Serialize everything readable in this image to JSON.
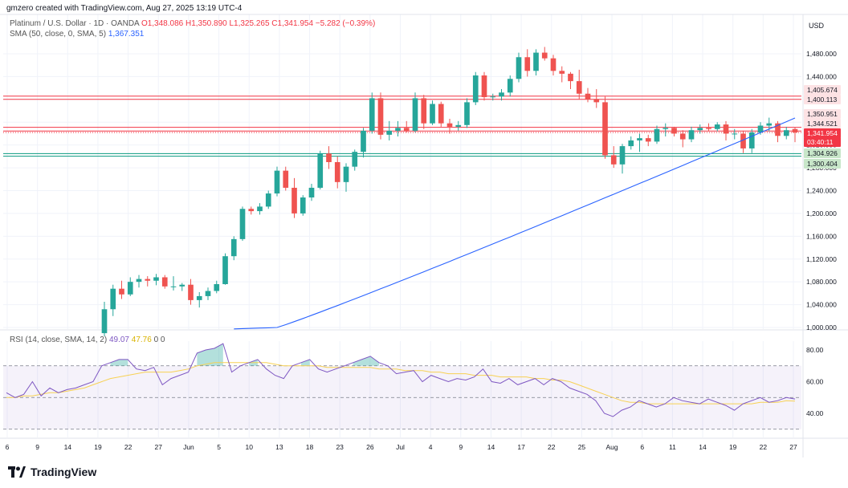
{
  "header": {
    "credit": "gmzero created with TradingView.com, Aug 27, 2025 13:19 UTC-4",
    "symbol_line": {
      "name": "Platinum / U.S. Dollar · 1D · OANDA",
      "ohlc": "O1,348.086 H1,350.890 L1,325.265 C1,341.954 −5.282 (−0.39%)"
    },
    "sma_line": {
      "label": "SMA (50, close, 0, SMA, 5)",
      "value": "1,367.351"
    },
    "rsi_line": {
      "label": "RSI (14, close, SMA, 14, 2)",
      "rsi_value": "49.07",
      "ma_value": "47.76",
      "extra": "0 0"
    }
  },
  "price_axis": {
    "currency": "USD",
    "ticks": [
      "1,480.000",
      "1,440.000",
      "1,400.000",
      "1,360.000",
      "1,320.000",
      "1,280.000",
      "1,240.000",
      "1,200.000",
      "1,160.000",
      "1,120.000",
      "1,080.000",
      "1,040.000",
      "1,000.000"
    ]
  },
  "rsi_axis": {
    "ticks": [
      "80.00",
      "60.00",
      "40.00"
    ]
  },
  "time_axis": {
    "labels": [
      "6",
      "9",
      "14",
      "19",
      "22",
      "27",
      "Jun",
      "5",
      "10",
      "13",
      "18",
      "23",
      "26",
      "Jul",
      "4",
      "9",
      "14",
      "17",
      "22",
      "25",
      "Aug",
      "6",
      "11",
      "14",
      "19",
      "22",
      "27"
    ]
  },
  "price_tags": [
    {
      "value": "1,405.674",
      "bg": "#f23645"
    },
    {
      "value": "1,400.113",
      "bg": "#f23645"
    },
    {
      "value": "1,350.951",
      "bg": "#f23645"
    },
    {
      "value": "1,344.521",
      "bg": "#f23645"
    },
    {
      "value": "1,341.954",
      "bg": "#f23645"
    },
    {
      "value": "03:40:11",
      "bg": "#f23645"
    },
    {
      "value": "1,304.926",
      "bg": "#089981"
    },
    {
      "value": "1,300.404",
      "bg": "#089981"
    }
  ],
  "colors": {
    "up": "#26a69a",
    "down": "#ef5350",
    "sma": "#2962ff",
    "rsi": "#7e57c2",
    "rsi_ma": "#f7d154",
    "res": "#f23645",
    "sup": "#089981"
  },
  "brand": {
    "name": "TradingView"
  },
  "chart_data": [
    {
      "type": "candlestick",
      "title": "Platinum / U.S. Dollar · 1D · OANDA",
      "y_unit": "USD",
      "ylim": [
        990,
        1500
      ],
      "candles": [
        [
          990,
          1045,
          985,
          1032
        ],
        [
          1032,
          1075,
          1020,
          1068
        ],
        [
          1068,
          1082,
          1050,
          1058
        ],
        [
          1058,
          1088,
          1055,
          1080
        ],
        [
          1080,
          1092,
          1070,
          1085
        ],
        [
          1085,
          1090,
          1072,
          1082
        ],
        [
          1082,
          1094,
          1074,
          1088
        ],
        [
          1088,
          1092,
          1068,
          1072
        ],
        [
          1072,
          1090,
          1065,
          1072
        ],
        [
          1072,
          1078,
          1064,
          1075
        ],
        [
          1075,
          1085,
          1040,
          1048
        ],
        [
          1048,
          1062,
          1035,
          1055
        ],
        [
          1055,
          1070,
          1048,
          1064
        ],
        [
          1064,
          1082,
          1060,
          1076
        ],
        [
          1076,
          1130,
          1075,
          1125
        ],
        [
          1125,
          1160,
          1118,
          1155
        ],
        [
          1155,
          1212,
          1152,
          1208
        ],
        [
          1208,
          1212,
          1198,
          1204
        ],
        [
          1204,
          1218,
          1198,
          1212
        ],
        [
          1212,
          1240,
          1208,
          1235
        ],
        [
          1235,
          1282,
          1230,
          1275
        ],
        [
          1275,
          1282,
          1240,
          1245
        ],
        [
          1245,
          1262,
          1192,
          1200
        ],
        [
          1200,
          1232,
          1196,
          1228
        ],
        [
          1228,
          1252,
          1222,
          1245
        ],
        [
          1245,
          1310,
          1242,
          1305
        ],
        [
          1305,
          1318,
          1278,
          1290
        ],
        [
          1290,
          1300,
          1244,
          1255
        ],
        [
          1255,
          1288,
          1238,
          1282
        ],
        [
          1282,
          1312,
          1275,
          1308
        ],
        [
          1308,
          1350,
          1298,
          1345
        ],
        [
          1345,
          1412,
          1340,
          1402
        ],
        [
          1402,
          1412,
          1330,
          1338
        ],
        [
          1338,
          1362,
          1328,
          1345
        ],
        [
          1345,
          1362,
          1335,
          1350
        ],
        [
          1350,
          1362,
          1342,
          1345
        ],
        [
          1345,
          1412,
          1342,
          1402
        ],
        [
          1402,
          1408,
          1348,
          1358
        ],
        [
          1358,
          1398,
          1355,
          1392
        ],
        [
          1392,
          1396,
          1352,
          1358
        ],
        [
          1358,
          1366,
          1340,
          1352
        ],
        [
          1352,
          1362,
          1345,
          1355
        ],
        [
          1355,
          1402,
          1350,
          1395
        ],
        [
          1395,
          1448,
          1390,
          1442
        ],
        [
          1442,
          1448,
          1398,
          1404
        ],
        [
          1404,
          1410,
          1398,
          1405
        ],
        [
          1405,
          1418,
          1398,
          1412
        ],
        [
          1412,
          1442,
          1405,
          1436
        ],
        [
          1436,
          1482,
          1430,
          1474
        ],
        [
          1474,
          1488,
          1440,
          1450
        ],
        [
          1450,
          1488,
          1442,
          1482
        ],
        [
          1482,
          1492,
          1468,
          1472
        ],
        [
          1472,
          1478,
          1442,
          1450
        ],
        [
          1450,
          1458,
          1430,
          1445
        ],
        [
          1445,
          1448,
          1418,
          1432
        ],
        [
          1432,
          1452,
          1400,
          1410
        ],
        [
          1410,
          1420,
          1395,
          1400
        ],
        [
          1400,
          1418,
          1385,
          1395
        ],
        [
          1395,
          1405,
          1296,
          1302
        ],
        [
          1302,
          1318,
          1280,
          1286
        ],
        [
          1286,
          1322,
          1270,
          1318
        ],
        [
          1318,
          1335,
          1312,
          1328
        ],
        [
          1328,
          1340,
          1308,
          1332
        ],
        [
          1332,
          1338,
          1318,
          1326
        ],
        [
          1326,
          1354,
          1322,
          1348
        ],
        [
          1348,
          1358,
          1335,
          1350
        ],
        [
          1350,
          1352,
          1335,
          1340
        ],
        [
          1340,
          1346,
          1316,
          1330
        ],
        [
          1330,
          1352,
          1325,
          1346
        ],
        [
          1346,
          1356,
          1340,
          1350
        ],
        [
          1350,
          1358,
          1344,
          1348
        ],
        [
          1348,
          1360,
          1344,
          1356
        ],
        [
          1356,
          1362,
          1328,
          1340
        ],
        [
          1340,
          1348,
          1330,
          1340
        ],
        [
          1340,
          1345,
          1306,
          1314
        ],
        [
          1314,
          1348,
          1306,
          1342
        ],
        [
          1342,
          1360,
          1338,
          1354
        ],
        [
          1354,
          1368,
          1344,
          1358
        ],
        [
          1358,
          1362,
          1325,
          1336
        ],
        [
          1336,
          1352,
          1330,
          1346
        ],
        [
          1348,
          1351,
          1325,
          1342
        ]
      ],
      "sma": [
        [
          9,
          991
        ],
        [
          18,
          1002
        ],
        [
          27,
          1018
        ],
        [
          36,
          1037
        ],
        [
          45,
          1062
        ],
        [
          50,
          1080
        ],
        [
          55,
          1102
        ],
        [
          60,
          1124
        ],
        [
          65,
          1152
        ],
        [
          70,
          1182
        ],
        [
          74,
          1208
        ],
        [
          77,
          1226
        ],
        [
          80,
          1248
        ],
        [
          80.3,
          1268
        ],
        [
          80.6,
          1290
        ],
        [
          81.0,
          1312
        ],
        [
          81.5,
          1333
        ],
        [
          82.0,
          1350
        ],
        [
          82.5,
          1360
        ],
        [
          83.0,
          1367.351
        ]
      ],
      "sma_points": [
        [
          14,
          1002
        ],
        [
          22,
          1015
        ],
        [
          30,
          1032
        ],
        [
          38,
          1054
        ],
        [
          46,
          1080
        ],
        [
          54,
          1110
        ],
        [
          60,
          1138
        ],
        [
          66,
          1168
        ],
        [
          71,
          1198
        ],
        [
          75,
          1222
        ],
        [
          78,
          1245
        ],
        [
          80,
          1268
        ],
        [
          80,
          1290
        ],
        [
          80,
          1310
        ],
        [
          80,
          1328
        ],
        [
          80,
          1340
        ],
        [
          80,
          1350
        ],
        [
          80,
          1358
        ],
        [
          80,
          1364
        ],
        [
          80,
          1367.351
        ]
      ],
      "levels": {
        "resistance": [
          1405.674,
          1400.113,
          1350.951,
          1344.521
        ],
        "support": [
          1304.926,
          1300.404
        ],
        "last": 1341.954
      }
    },
    {
      "type": "line",
      "title": "RSI (14, close, SMA, 14, 2)",
      "ylim": [
        22,
        90
      ],
      "bands": [
        30,
        50,
        70
      ],
      "rsi": [
        53,
        50,
        52,
        60,
        51,
        56,
        53,
        55,
        56,
        58,
        60,
        70,
        72,
        74,
        74,
        68,
        67,
        69,
        58,
        62,
        64,
        66,
        78,
        80,
        81,
        84,
        66,
        70,
        72,
        74,
        68,
        64,
        62,
        70,
        72,
        74,
        68,
        66,
        68,
        70,
        72,
        74,
        76,
        72,
        70,
        65,
        66,
        67,
        60,
        64,
        62,
        60,
        62,
        61,
        63,
        68,
        60,
        59,
        62,
        58,
        60,
        62,
        58,
        62,
        60,
        56,
        54,
        52,
        48,
        40,
        38,
        42,
        44,
        48,
        46,
        44,
        46,
        50,
        48,
        47,
        46,
        49,
        47,
        45,
        42,
        46,
        48,
        50,
        47,
        48,
        50,
        49.07
      ],
      "rsi_ma": [
        50,
        50,
        51,
        51,
        52,
        53,
        53,
        54,
        55,
        56,
        58,
        60,
        62,
        63,
        64,
        65,
        66,
        66,
        66,
        66,
        67,
        68,
        70,
        71,
        72,
        72,
        72,
        72,
        72,
        72,
        72,
        71,
        70,
        70,
        70,
        70,
        70,
        69,
        69,
        69,
        69,
        69,
        69,
        68,
        68,
        68,
        67,
        67,
        67,
        66,
        66,
        65,
        65,
        65,
        64,
        64,
        64,
        63,
        63,
        63,
        63,
        62,
        62,
        61,
        61,
        60,
        58,
        56,
        54,
        52,
        50,
        48,
        47,
        47,
        46,
        46,
        46,
        46,
        46,
        46,
        46,
        46,
        46,
        46,
        46,
        46,
        46,
        47,
        47,
        47,
        48,
        47.76
      ]
    }
  ]
}
